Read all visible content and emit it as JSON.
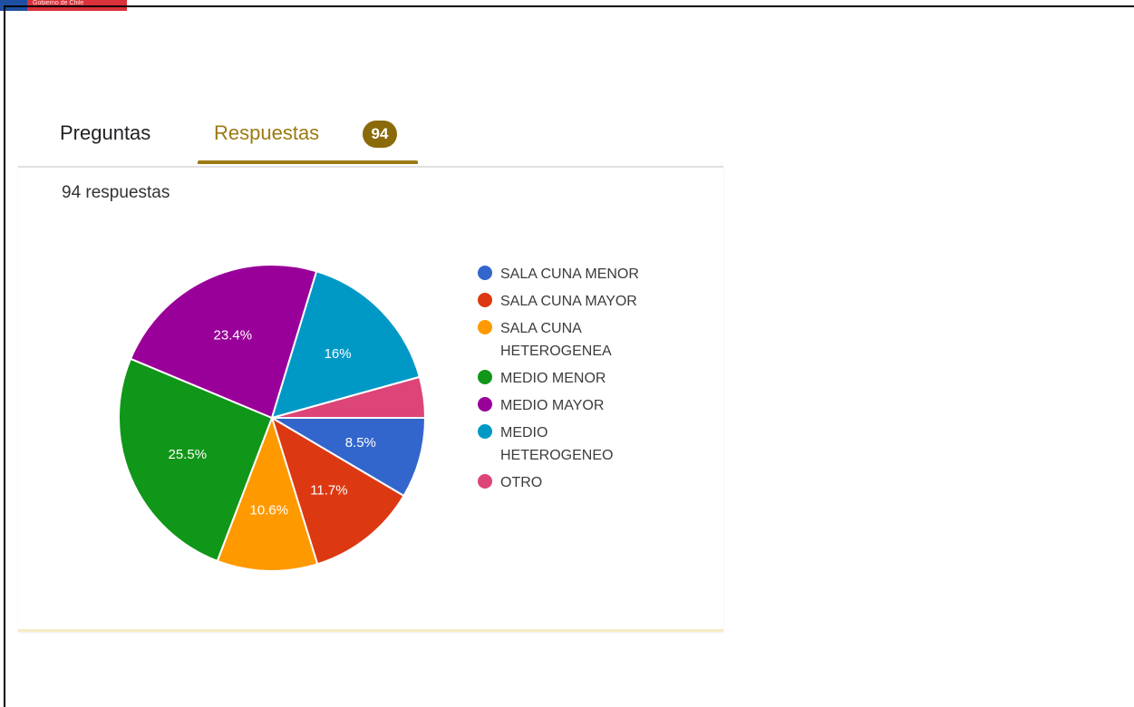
{
  "header": {
    "brand_text": "Gobierno de Chile"
  },
  "tabs": {
    "preguntas": "Preguntas",
    "respuestas": "Respuestas",
    "respuestas_count": "94"
  },
  "summary": {
    "count_text": "94 respuestas"
  },
  "chart_data": {
    "type": "pie",
    "categories": [
      "SALA CUNA MENOR",
      "SALA CUNA MAYOR",
      "SALA CUNA HETEROGENEA",
      "MEDIO MENOR",
      "MEDIO MAYOR",
      "MEDIO HETEROGENEO",
      "OTRO"
    ],
    "values": [
      8.5,
      11.7,
      10.6,
      25.5,
      23.4,
      16,
      4.3
    ],
    "labels": [
      "8.5%",
      "11.7%",
      "10.6%",
      "25.5%",
      "23.4%",
      "16%",
      ""
    ],
    "colors": [
      "#3366cc",
      "#dc3912",
      "#ff9900",
      "#109618",
      "#990099",
      "#0099c6",
      "#dd4477"
    ],
    "legend_lines": [
      [
        "SALA CUNA MENOR"
      ],
      [
        "SALA CUNA MAYOR"
      ],
      [
        "SALA CUNA",
        "HETEROGENEA"
      ],
      [
        "MEDIO MENOR"
      ],
      [
        "MEDIO MAYOR"
      ],
      [
        "MEDIO",
        "HETEROGENEO"
      ],
      [
        "OTRO"
      ]
    ],
    "legend_position": "right",
    "start": "clockwise from 3 o'clock"
  }
}
